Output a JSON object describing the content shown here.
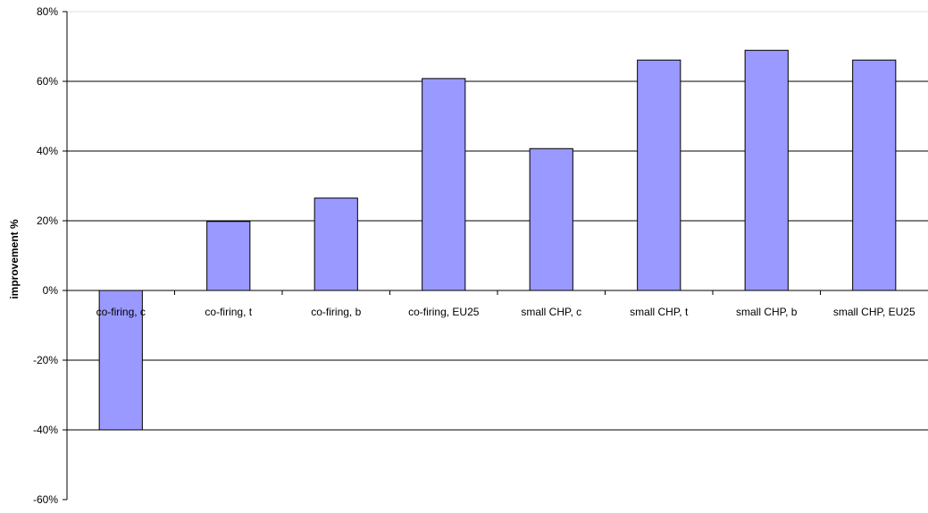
{
  "chart_data": {
    "type": "bar",
    "title": "",
    "xlabel": "",
    "ylabel": "improvement %",
    "categories": [
      "co-firing, c",
      "co-firing, t",
      "co-firing, b",
      "co-firing, EU25",
      "small CHP, c",
      "small CHP, t",
      "small CHP, b",
      "small CHP, EU25"
    ],
    "series": [
      {
        "values": [
          -40,
          19.8,
          26.5,
          60.8,
          40.7,
          66.1,
          68.9,
          66.1
        ],
        "color": "#9999ff"
      }
    ],
    "ylim": [
      -60,
      80
    ],
    "yticks": [
      -60,
      -40,
      -20,
      0,
      20,
      40,
      60,
      80
    ],
    "ytick_labels": [
      "-60%",
      "-40%",
      "-20%",
      "0%",
      "20%",
      "40%",
      "60%",
      "80%"
    ],
    "grid": true,
    "legend": "none"
  }
}
